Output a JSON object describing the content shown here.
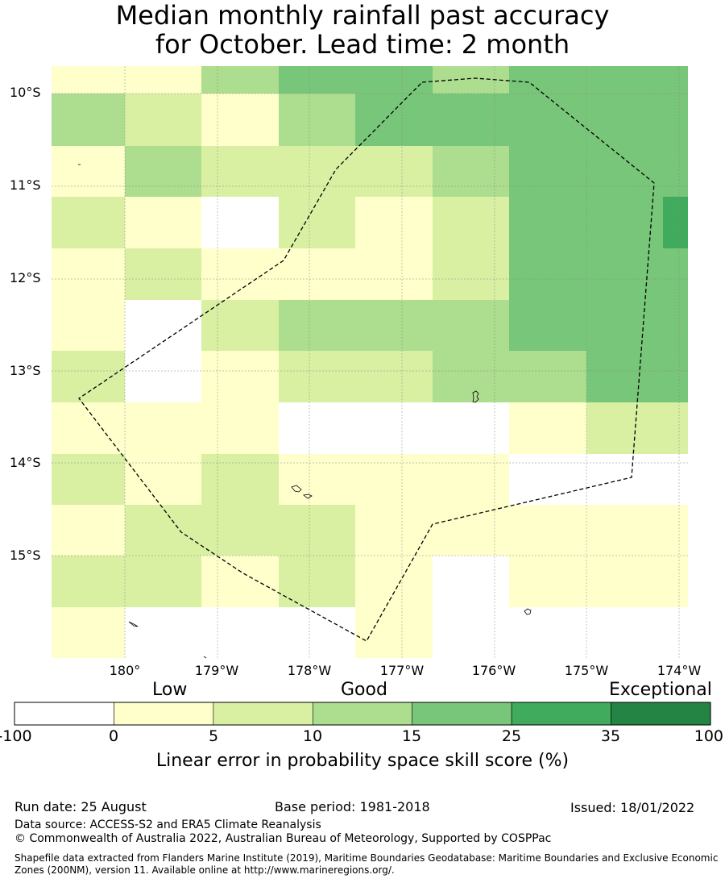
{
  "title_line1": "Median monthly rainfall past accuracy",
  "title_line2": "for October. Lead time: 2 month",
  "colors": {
    "c0": "#ffffff",
    "c1": "#ffffcc",
    "c2": "#d9f0a3",
    "c3": "#addd8e",
    "c4": "#78c679",
    "c5": "#41ab5d",
    "c6": "#238443"
  },
  "map": {
    "lat_labels": [
      "10°S",
      "11°S",
      "12°S",
      "13°S",
      "14°S",
      "15°S"
    ],
    "lon_labels": [
      "180°",
      "179°W",
      "178°W",
      "177°W",
      "176°W",
      "175°W",
      "174°W"
    ],
    "grid_classes": [
      [
        1,
        1,
        3,
        4,
        4,
        3,
        4,
        4
      ],
      [
        3,
        2,
        1,
        3,
        4,
        4,
        4,
        4
      ],
      [
        1,
        3,
        2,
        2,
        2,
        3,
        4,
        4
      ],
      [
        2,
        1,
        0,
        2,
        1,
        2,
        4,
        4
      ],
      [
        1,
        2,
        1,
        1,
        1,
        2,
        4,
        4
      ],
      [
        1,
        0,
        2,
        3,
        3,
        3,
        4,
        4
      ],
      [
        2,
        0,
        1,
        2,
        2,
        3,
        3,
        4
      ],
      [
        1,
        1,
        1,
        0,
        0,
        0,
        1,
        2
      ],
      [
        2,
        1,
        2,
        1,
        1,
        1,
        0,
        0
      ],
      [
        1,
        2,
        2,
        2,
        1,
        1,
        1,
        1
      ],
      [
        2,
        2,
        1,
        2,
        1,
        0,
        1,
        1
      ],
      [
        1,
        0,
        0,
        0,
        1,
        0,
        0,
        0
      ]
    ]
  },
  "colorbar": {
    "categories": [
      "Low",
      "Good",
      "Exceptional"
    ],
    "ticks": [
      "-100",
      "0",
      "5",
      "10",
      "15",
      "25",
      "35",
      "100"
    ],
    "title": "Linear error in probability space skill score (%)"
  },
  "footer": {
    "run_date": "Run date: 25 August",
    "base_period": "Base period: 1981-2018",
    "issued": "Issued: 18/01/2022",
    "data_source": "Data source: ACCESS-S2 and ERA5 Climate Reanalysis",
    "copyright": "© Commonwealth of Australia 2022, Australian Bureau of Meteorology, Supported by COSPPac",
    "shapefile": "Shapefile data extracted from Flanders Marine Institute (2019), Maritime Boundaries Geodatabase: Maritime Boundaries and Exclusive Economic Zones (200NM), version 11. Available online at http://www.marineregions.org/."
  }
}
